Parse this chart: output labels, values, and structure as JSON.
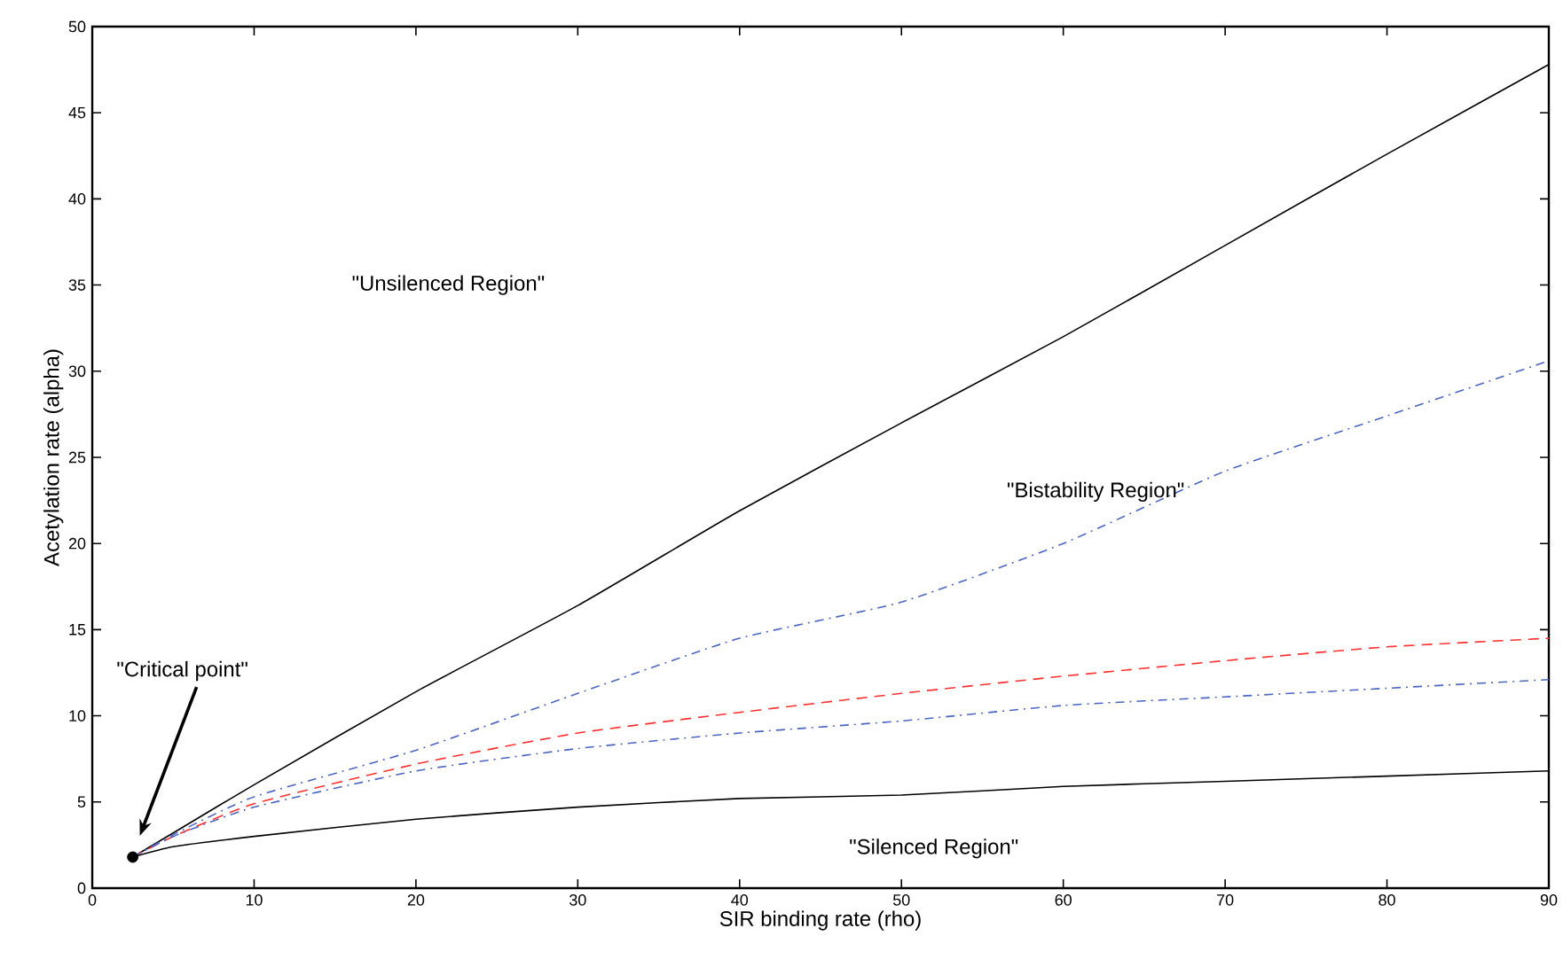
{
  "chart_data": {
    "type": "line",
    "xlabel": "SIR binding rate (rho)",
    "ylabel": "Acetylation rate (alpha)",
    "x": [
      2.5,
      5,
      10,
      20,
      30,
      40,
      50,
      60,
      70,
      80,
      90
    ],
    "series": [
      {
        "color": "#000000",
        "line_style": "solid",
        "values": [
          1.8,
          3.2,
          6.0,
          11.4,
          16.4,
          21.9,
          27.0,
          32.0,
          37.3,
          42.6,
          47.8
        ]
      },
      {
        "color": "#4a66c0",
        "line_style": "dashdot",
        "values": [
          1.8,
          3.1,
          5.3,
          8.0,
          11.3,
          14.5,
          16.6,
          20.0,
          24.2,
          27.4,
          30.6
        ]
      },
      {
        "color": "#ff3030",
        "line_style": "dashed",
        "values": [
          1.8,
          3.0,
          4.9,
          7.2,
          9.0,
          10.2,
          11.3,
          12.3,
          13.2,
          14.0,
          14.5
        ]
      },
      {
        "color": "#4a66c0",
        "line_style": "dashdot",
        "values": [
          1.8,
          3.0,
          4.7,
          6.8,
          8.1,
          9.0,
          9.7,
          10.6,
          11.1,
          11.6,
          12.1
        ]
      },
      {
        "color": "#000000",
        "line_style": "solid",
        "values": [
          1.8,
          2.4,
          3.0,
          4.0,
          4.7,
          5.2,
          5.4,
          5.9,
          6.2,
          6.5,
          6.8
        ]
      },
      {
        "type": "scatter",
        "x": [
          2.5
        ],
        "color": "#000000",
        "marker": "circle",
        "values": [
          1.8
        ]
      }
    ],
    "xlim": [
      0,
      90
    ],
    "ylim": [
      0,
      50
    ],
    "xticks": [
      0,
      10,
      20,
      30,
      40,
      50,
      60,
      70,
      80,
      90
    ],
    "yticks": [
      0,
      5,
      10,
      15,
      20,
      25,
      30,
      35,
      40,
      45,
      50
    ],
    "grid": false,
    "annotations": [
      "\"Unsilenced Region\"",
      "\"Bistability Region\"",
      "\"Silenced Region\"",
      "\"Critical point\""
    ]
  }
}
